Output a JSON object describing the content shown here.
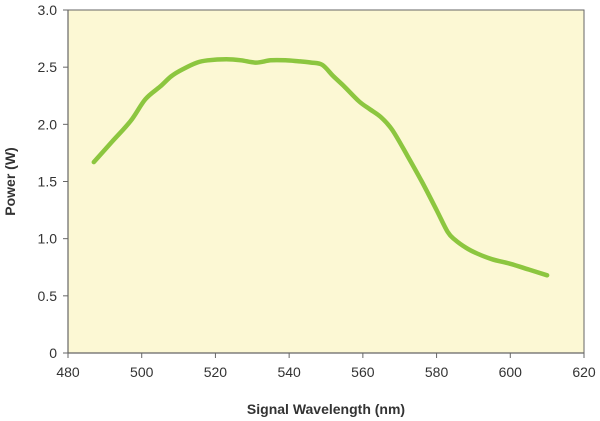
{
  "chart_data": {
    "type": "line",
    "title": "",
    "xlabel": "Signal Wavelength (nm)",
    "ylabel": "Power (W)",
    "xlim": [
      480,
      620
    ],
    "ylim": [
      0,
      3.0
    ],
    "x_ticks": [
      "480",
      "500",
      "520",
      "540",
      "560",
      "580",
      "600",
      "620"
    ],
    "y_ticks": [
      "0",
      "0.5",
      "1.0",
      "1.5",
      "2.0",
      "2.5",
      "3.0"
    ],
    "grid": false,
    "legend": "none",
    "colors": {
      "plot_background": "#fcf8d4",
      "line": "#8cc63f",
      "axis": "#666666"
    },
    "series": [
      {
        "x": [
          487,
          492,
          497,
          501,
          505,
          508,
          511,
          515,
          518,
          523,
          527,
          531,
          535,
          539,
          543,
          546,
          549,
          552,
          555,
          559,
          562,
          565,
          568,
          572,
          576,
          580,
          583,
          585,
          588,
          591,
          595,
          600,
          605,
          610
        ],
        "y": [
          1.67,
          1.85,
          2.03,
          2.22,
          2.33,
          2.42,
          2.48,
          2.54,
          2.56,
          2.57,
          2.56,
          2.54,
          2.56,
          2.56,
          2.55,
          2.54,
          2.52,
          2.42,
          2.33,
          2.2,
          2.13,
          2.06,
          1.95,
          1.73,
          1.5,
          1.25,
          1.06,
          0.99,
          0.92,
          0.87,
          0.82,
          0.78,
          0.73,
          0.68
        ]
      }
    ]
  }
}
